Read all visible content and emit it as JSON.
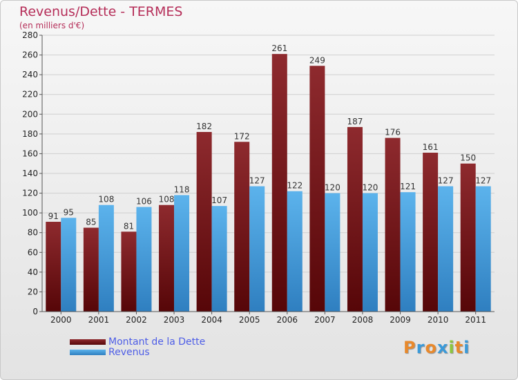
{
  "chart_data": {
    "type": "bar",
    "title": "Revenus/Dette - TERMES",
    "subtitle": "(en milliers d'€)",
    "categories": [
      "2000",
      "2001",
      "2002",
      "2003",
      "2004",
      "2005",
      "2006",
      "2007",
      "2008",
      "2009",
      "2010",
      "2011"
    ],
    "series": [
      {
        "name": "Montant de la Dette",
        "color": "#7a1a1e",
        "values": [
          91,
          85,
          81,
          108,
          182,
          172,
          261,
          249,
          187,
          176,
          161,
          150
        ]
      },
      {
        "name": "Revenus",
        "color": "#4aa3e0",
        "values": [
          95,
          108,
          106,
          118,
          107,
          127,
          122,
          120,
          120,
          121,
          127,
          127
        ]
      }
    ],
    "ylim": [
      0,
      280
    ],
    "yticks": [
      0,
      20,
      40,
      60,
      80,
      100,
      120,
      140,
      160,
      180,
      200,
      220,
      240,
      260,
      280
    ],
    "grid": true,
    "legend_position": "bottom-left"
  },
  "logo": {
    "letters": [
      "P",
      "r",
      "o",
      "x",
      "i",
      "t",
      "i"
    ],
    "colors": [
      "#e8892c",
      "#3a9ad9",
      "#e8892c",
      "#3a9ad9",
      "#8cc63f",
      "#e8892c",
      "#3a9ad9"
    ]
  }
}
